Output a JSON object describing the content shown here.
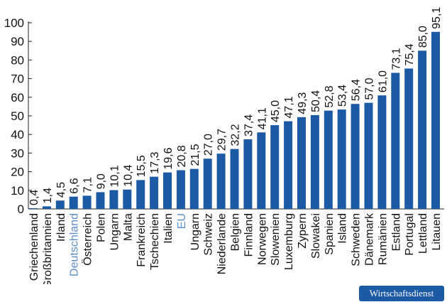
{
  "brand": {
    "label": "Wirtschaftsdienst",
    "color": "#1d5aa6"
  },
  "colors": {
    "bar": "#1d5aa6",
    "highlight_label": "#5b8fcf",
    "text": "#111111",
    "axis": "#222222"
  },
  "chart_data": {
    "type": "bar",
    "title": "",
    "xlabel": "",
    "ylabel": "",
    "ylim": [
      0,
      100
    ],
    "yticks": [
      0,
      10,
      20,
      30,
      40,
      50,
      60,
      70,
      80,
      90,
      100
    ],
    "grid": false,
    "categories": [
      "Griechenland",
      "Großbritannien",
      "Irland",
      "Deutschland",
      "Österreich",
      "Polen",
      "Ungarn",
      "Malta",
      "Frankreich",
      "Tschechien",
      "Italien",
      "EU",
      "Ungarn",
      "Schweiz",
      "Niederlande",
      "Belgien",
      "Finnland",
      "Norwegen",
      "Slowenien",
      "Luxemburg",
      "Zypern",
      "Slowakei",
      "Spanien",
      "Island",
      "Schweden",
      "Dänemark",
      "Rumänien",
      "Estland",
      "Portugal",
      "Lettland",
      "Litauen"
    ],
    "values": [
      0.4,
      1.4,
      4.5,
      6.6,
      7.1,
      9.0,
      10.1,
      10.4,
      15.5,
      17.3,
      19.6,
      20.8,
      21.5,
      27.0,
      29.7,
      32.2,
      37.4,
      41.1,
      45.0,
      47.1,
      49.3,
      50.4,
      52.8,
      53.4,
      56.4,
      57.0,
      61.0,
      73.1,
      75.4,
      85.0,
      95.1
    ],
    "value_labels": [
      "0,4",
      "1,4",
      "4,5",
      "6,6",
      "7,1",
      "9,0",
      "10,1",
      "10,4",
      "15,5",
      "17,3",
      "19,6",
      "20,8",
      "21,5",
      "27,0",
      "29,7",
      "32,2",
      "37,4",
      "41,1",
      "45,0",
      "47,1",
      "49,3",
      "50,4",
      "52,8",
      "53,4",
      "56,4",
      "57,0",
      "61,0",
      "73,1",
      "75,4",
      "85,0",
      "95,1"
    ],
    "highlighted": [
      "Deutschland",
      "EU"
    ]
  }
}
